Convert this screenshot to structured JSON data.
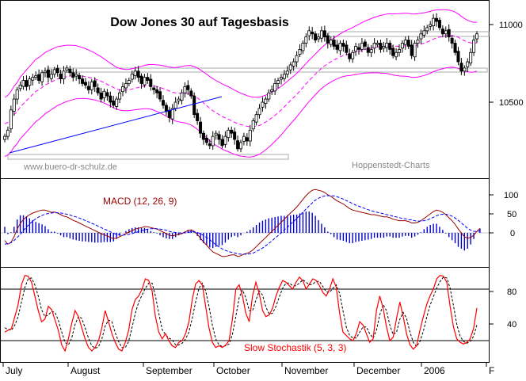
{
  "page": {
    "title": "Dow Jones 30 auf Tagesbasis",
    "watermark_left": "www.buero-dr-schulz.de",
    "watermark_right": "Hoppenstedt-Charts"
  },
  "colors": {
    "background": "#ffffff",
    "panel_border": "#000000",
    "candle": "#000000",
    "bollinger": "#ff00ff",
    "moving_average": "#ff00ff",
    "trendline": "#0000ff",
    "macd_line": "#990000",
    "macd_signal": "#0000ff",
    "macd_histogram": "#0000cc",
    "stoch_k": "#ff0000",
    "stoch_d": "#000000",
    "macd_label": "#990000",
    "stoch_label": "#ff0000",
    "guide_box": "#aaaaaa",
    "level_line": "#000000"
  },
  "chart_data": [
    {
      "type": "candlestick",
      "title": "Dow Jones 30 auf Tagesbasis",
      "y_ticks": [
        10500,
        11000
      ],
      "ylim": [
        10050,
        11150
      ],
      "x_ticks": [
        "July",
        "August",
        "September",
        "October",
        "November",
        "December",
        "2006",
        "F"
      ],
      "xlim": [
        0,
        155
      ],
      "close_values": [
        10280,
        10320,
        10450,
        10520,
        10580,
        10610,
        10640,
        10600,
        10650,
        10660,
        10670,
        10640,
        10690,
        10700,
        10660,
        10680,
        10710,
        10690,
        10650,
        10700,
        10720,
        10690,
        10660,
        10680,
        10650,
        10620,
        10610,
        10580,
        10630,
        10600,
        10560,
        10520,
        10570,
        10540,
        10500,
        10480,
        10520,
        10560,
        10600,
        10620,
        10640,
        10680,
        10700,
        10660,
        10620,
        10660,
        10640,
        10600,
        10580,
        10560,
        10520,
        10480,
        10440,
        10400,
        10460,
        10500,
        10520,
        10560,
        10600,
        10580,
        10540,
        10420,
        10380,
        10300,
        10260,
        10240,
        10220,
        10280,
        10300,
        10260,
        10220,
        10280,
        10320,
        10300,
        10260,
        10200,
        10240,
        10280,
        10250,
        10320,
        10380,
        10420,
        10460,
        10500,
        10520,
        10560,
        10580,
        10620,
        10640,
        10660,
        10680,
        10700,
        10740,
        10760,
        10800,
        10840,
        10880,
        10920,
        10960,
        10940,
        10900,
        10920,
        10960,
        10920,
        10880,
        10900,
        10860,
        10840,
        10880,
        10860,
        10820,
        10780,
        10820,
        10860,
        10840,
        10880,
        10860,
        10820,
        10840,
        10880,
        10880,
        10840,
        10860,
        10880,
        10840,
        10800,
        10820,
        10840,
        10880,
        10900,
        10860,
        10800,
        10880,
        10900,
        10940,
        10960,
        10980,
        11000,
        11040,
        11020,
        10980,
        10940,
        10960,
        10920,
        10880,
        10820,
        10760,
        10700,
        10720,
        10760,
        10820,
        10900,
        10940
      ],
      "ma_values": [
        10360,
        10370,
        10390,
        10420,
        10440,
        10470,
        10490,
        10510,
        10530,
        10550,
        10570,
        10580,
        10595,
        10610,
        10620,
        10630,
        10640,
        10650,
        10655,
        10660,
        10665,
        10668,
        10670,
        10672,
        10670,
        10668,
        10665,
        10660,
        10655,
        10650,
        10642,
        10635,
        10625,
        10615,
        10605,
        10595,
        10585,
        10580,
        10578,
        10578,
        10580,
        10585,
        10590,
        10595,
        10600,
        10605,
        10608,
        10608,
        10605,
        10600,
        10595,
        10588,
        10580,
        10572,
        10565,
        10560,
        10558,
        10558,
        10558,
        10555,
        10550,
        10540,
        10528,
        10512,
        10495,
        10478,
        10460,
        10445,
        10432,
        10420,
        10408,
        10398,
        10390,
        10380,
        10370,
        10362,
        10355,
        10350,
        10345,
        10342,
        10342,
        10345,
        10350,
        10360,
        10372,
        10385,
        10400,
        10415,
        10432,
        10450,
        10470,
        10490,
        10510,
        10530,
        10550,
        10572,
        10595,
        10618,
        10640,
        10660,
        10680,
        10700,
        10718,
        10734,
        10748,
        10760,
        10772,
        10782,
        10792,
        10800,
        10806,
        10810,
        10816,
        10822,
        10828,
        10834,
        10840,
        10844,
        10848,
        10852,
        10856,
        10858,
        10860,
        10862,
        10862,
        10860,
        10860,
        10860,
        10862,
        10864,
        10864,
        10862,
        10864,
        10868,
        10874,
        10880,
        10888,
        10896,
        10906,
        10914,
        10920,
        10924,
        10928,
        10930,
        10930,
        10926,
        10918,
        10906,
        10896,
        10888,
        10882,
        10880,
        10882
      ]
    },
    {
      "type": "line",
      "title": "MACD (12, 26, 9)",
      "y_ticks": [
        0,
        50,
        100
      ],
      "ylim": [
        -90,
        140
      ],
      "macd_values": [
        -20,
        -30,
        -25,
        -10,
        10,
        25,
        35,
        42,
        48,
        52,
        55,
        58,
        60,
        60,
        57,
        54,
        55,
        52,
        48,
        44,
        42,
        38,
        33,
        30,
        26,
        22,
        18,
        14,
        10,
        6,
        2,
        -2,
        -5,
        -8,
        -12,
        -15,
        -14,
        -10,
        -6,
        -2,
        2,
        6,
        10,
        12,
        14,
        16,
        16,
        14,
        12,
        10,
        6,
        2,
        -2,
        -6,
        -8,
        -6,
        -4,
        -2,
        2,
        6,
        8,
        4,
        -4,
        -14,
        -24,
        -32,
        -42,
        -50,
        -54,
        -58,
        -62,
        -62,
        -60,
        -58,
        -58,
        -62,
        -60,
        -56,
        -54,
        -50,
        -44,
        -36,
        -28,
        -20,
        -12,
        -4,
        4,
        12,
        20,
        28,
        36,
        44,
        52,
        60,
        68,
        78,
        88,
        98,
        106,
        112,
        114,
        112,
        110,
        106,
        100,
        96,
        90,
        84,
        80,
        76,
        70,
        64,
        60,
        58,
        56,
        54,
        52,
        50,
        48,
        48,
        46,
        44,
        42,
        42,
        40,
        36,
        34,
        32,
        32,
        32,
        30,
        26,
        26,
        28,
        32,
        38,
        44,
        50,
        56,
        60,
        58,
        54,
        48,
        40,
        32,
        22,
        10,
        0,
        -10,
        -14,
        -12,
        -6,
        4,
        12
      ],
      "signal_values": [
        -30,
        -28,
        -26,
        -20,
        -12,
        -4,
        6,
        15,
        24,
        31,
        37,
        42,
        46,
        49,
        51,
        52,
        53,
        53,
        52,
        51,
        49,
        47,
        44,
        42,
        39,
        36,
        32,
        29,
        25,
        22,
        18,
        14,
        10,
        7,
        3,
        -1,
        -4,
        -5,
        -6,
        -5,
        -4,
        -2,
        1,
        3,
        6,
        8,
        10,
        11,
        11,
        11,
        10,
        9,
        7,
        4,
        2,
        1,
        0,
        0,
        0,
        1,
        3,
        3,
        1,
        -2,
        -7,
        -12,
        -18,
        -25,
        -31,
        -37,
        -42,
        -46,
        -49,
        -51,
        -53,
        -55,
        -56,
        -56,
        -56,
        -55,
        -53,
        -49,
        -45,
        -40,
        -34,
        -28,
        -21,
        -14,
        -7,
        0,
        8,
        15,
        23,
        30,
        38,
        46,
        54,
        63,
        71,
        79,
        86,
        91,
        95,
        97,
        98,
        98,
        97,
        95,
        92,
        89,
        85,
        81,
        77,
        73,
        70,
        67,
        64,
        61,
        58,
        56,
        54,
        52,
        50,
        48,
        46,
        44,
        42,
        40,
        38,
        37,
        35,
        34,
        32,
        31,
        31,
        32,
        34,
        37,
        41,
        45,
        48,
        49,
        49,
        47,
        44,
        39,
        33,
        26,
        19,
        12,
        7,
        4,
        4,
        5
      ],
      "series_labels": [
        "MACD (12, 26, 9)"
      ]
    },
    {
      "type": "line",
      "title": "Slow Stochastik (5, 3, 3)",
      "y_ticks": [
        40,
        80
      ],
      "ylim": [
        0,
        100
      ],
      "reference_levels": [
        80,
        20
      ],
      "k_values": [
        30,
        32,
        34,
        48,
        62,
        85,
        96,
        95,
        88,
        72,
        55,
        42,
        45,
        60,
        56,
        44,
        32,
        15,
        8,
        22,
        40,
        55,
        48,
        35,
        22,
        12,
        8,
        12,
        20,
        35,
        55,
        42,
        28,
        18,
        10,
        8,
        18,
        32,
        56,
        68,
        72,
        80,
        92,
        90,
        78,
        48,
        30,
        22,
        28,
        20,
        14,
        12,
        18,
        20,
        28,
        42,
        68,
        86,
        90,
        85,
        60,
        35,
        18,
        12,
        14,
        12,
        15,
        20,
        45,
        80,
        85,
        72,
        52,
        42,
        72,
        88,
        75,
        55,
        48,
        50,
        58,
        72,
        82,
        90,
        88,
        84,
        80,
        88,
        94,
        90,
        80,
        86,
        92,
        90,
        84,
        76,
        72,
        80,
        92,
        82,
        52,
        30,
        26,
        22,
        20,
        28,
        42,
        38,
        28,
        18,
        22,
        55,
        72,
        58,
        36,
        20,
        24,
        46,
        65,
        48,
        28,
        15,
        10,
        14,
        32,
        48,
        62,
        72,
        80,
        92,
        96,
        95,
        88,
        60,
        36,
        22,
        18,
        16,
        18,
        22,
        34,
        58
      ],
      "d_values": [
        35,
        33,
        32,
        38,
        48,
        65,
        82,
        92,
        93,
        85,
        72,
        56,
        48,
        50,
        54,
        53,
        44,
        30,
        18,
        15,
        23,
        39,
        48,
        46,
        35,
        23,
        14,
        11,
        13,
        22,
        37,
        44,
        42,
        29,
        19,
        12,
        12,
        19,
        35,
        52,
        65,
        73,
        81,
        87,
        87,
        72,
        52,
        33,
        27,
        23,
        21,
        15,
        15,
        17,
        22,
        30,
        46,
        65,
        81,
        87,
        78,
        60,
        38,
        22,
        15,
        13,
        14,
        16,
        27,
        48,
        70,
        79,
        70,
        55,
        55,
        67,
        78,
        73,
        59,
        51,
        52,
        60,
        71,
        81,
        87,
        87,
        84,
        84,
        87,
        91,
        88,
        85,
        86,
        89,
        89,
        83,
        77,
        76,
        81,
        85,
        75,
        55,
        36,
        26,
        23,
        23,
        30,
        36,
        36,
        28,
        23,
        32,
        50,
        62,
        55,
        38,
        27,
        30,
        45,
        53,
        46,
        30,
        18,
        13,
        19,
        31,
        47,
        61,
        71,
        81,
        89,
        94,
        93,
        81,
        61,
        39,
        25,
        19,
        17,
        19,
        25,
        38
      ],
      "series_labels": [
        "Slow Stochastik (5, 3, 3)"
      ]
    }
  ],
  "price_panel": {
    "tick_11000": "11000",
    "tick_10500": "10500"
  },
  "macd_panel": {
    "label": "MACD (12, 26, 9)",
    "tick_100": "100",
    "tick_50": "50",
    "tick_0": "0"
  },
  "stoch_panel": {
    "label": "Slow Stochastik (5, 3, 3)",
    "tick_80": "80",
    "tick_40": "40"
  },
  "x_axis": {
    "months": [
      "July",
      "August",
      "September",
      "October",
      "November",
      "December",
      "2006",
      "F"
    ]
  }
}
